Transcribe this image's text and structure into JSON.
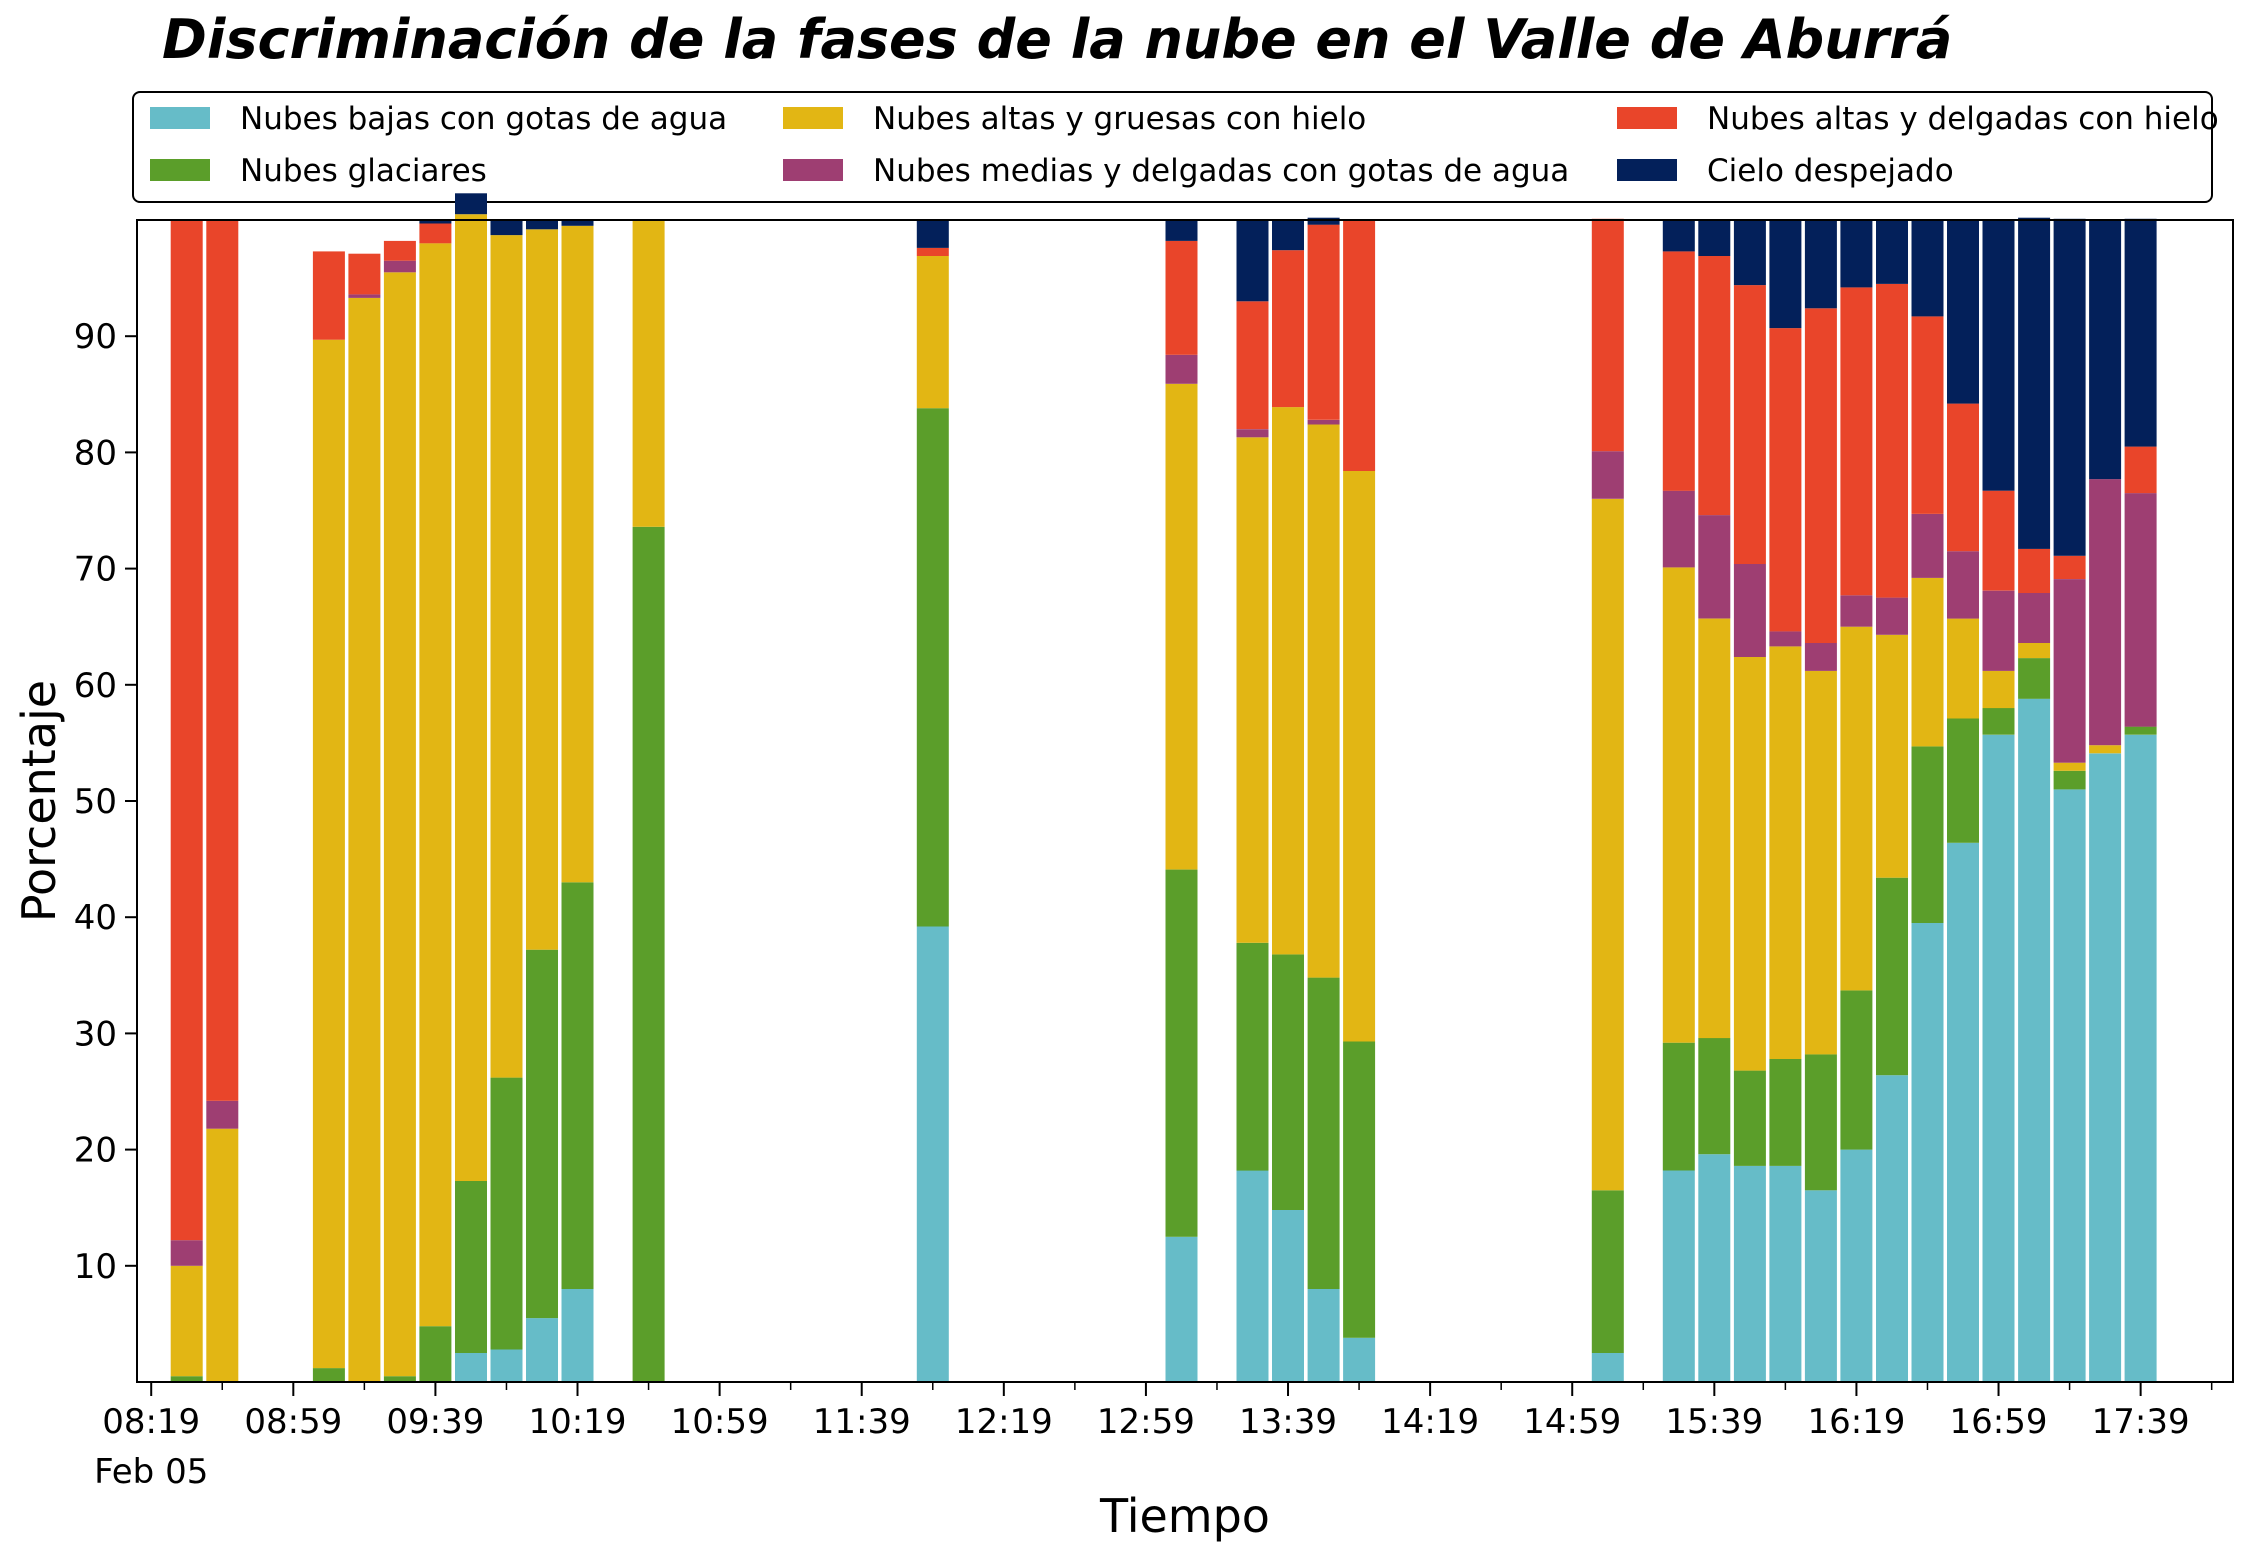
{
  "chart_data": {
    "type": "bar",
    "stacked": true,
    "title": "Discriminación de la fases de la nube en el Valle de Aburrá",
    "xlabel": "Tiempo",
    "ylabel": "Porcentaje",
    "ylim": [
      0,
      100
    ],
    "yticks": [
      10,
      20,
      30,
      40,
      50,
      60,
      70,
      80,
      90
    ],
    "x_tick_labels": [
      "08:19",
      "08:59",
      "09:39",
      "10:19",
      "10:59",
      "11:39",
      "12:19",
      "12:59",
      "13:39",
      "14:19",
      "14:59",
      "15:39",
      "16:19",
      "16:59",
      "17:39"
    ],
    "x_date_label": "Feb 05",
    "x_domain": [
      "08:15",
      "18:05"
    ],
    "legend_position": "top",
    "bar_width_minutes": 9,
    "grid": false,
    "times": [
      "08:29",
      "08:39",
      "09:09",
      "09:19",
      "09:29",
      "09:39",
      "09:49",
      "09:59",
      "10:09",
      "10:19",
      "10:39",
      "11:59",
      "13:09",
      "13:29",
      "13:39",
      "13:49",
      "13:59",
      "15:09",
      "15:29",
      "15:39",
      "15:49",
      "15:59",
      "16:09",
      "16:19",
      "16:29",
      "16:39",
      "16:49",
      "16:59",
      "17:09",
      "17:19",
      "17:29",
      "17:39"
    ],
    "series": [
      {
        "name": "Nubes bajas con gotas de agua",
        "color": "#66BCC8",
        "values": [
          0,
          0,
          0,
          0,
          0,
          0,
          2.5,
          2.8,
          5.5,
          8,
          0,
          39.2,
          12.5,
          18.2,
          14.8,
          8,
          3.8,
          2.5,
          18.2,
          19.6,
          18.6,
          18.6,
          16.5,
          20,
          26.4,
          39.5,
          46.4,
          55.7,
          58.8,
          51,
          54.1,
          55.7
        ]
      },
      {
        "name": "Nubes glaciares",
        "color": "#5B9E2A",
        "values": [
          0.5,
          0,
          1.2,
          0,
          0.5,
          4.8,
          14.8,
          23.4,
          31.7,
          35,
          73.6,
          44.6,
          31.6,
          19.6,
          22,
          26.8,
          25.5,
          14,
          11,
          10,
          8.2,
          9.2,
          11.7,
          13.7,
          17,
          15.2,
          10.7,
          2.3,
          3.5,
          1.6,
          0,
          0.7
        ]
      },
      {
        "name": "Nubes altas y gruesas con hielo",
        "color": "#E2B614",
        "values": [
          9.5,
          21.8,
          88.5,
          93.3,
          95,
          93.2,
          83.2,
          72.5,
          62,
          56.5,
          26.4,
          13.1,
          41.8,
          43.5,
          47.1,
          47.6,
          49.1,
          59.5,
          40.9,
          36.1,
          35.6,
          35.5,
          33,
          31.3,
          20.9,
          14.5,
          8.6,
          3.2,
          1.3,
          0.7,
          0.7,
          0
        ]
      },
      {
        "name": "Nubes medias y delgadas con gotas de agua",
        "color": "#9E3E72",
        "values": [
          2.2,
          2.4,
          0,
          0.3,
          1,
          0,
          0,
          0,
          0,
          0,
          0,
          0,
          2.5,
          0.7,
          0,
          0.4,
          0,
          4.1,
          6.6,
          8.9,
          8,
          1.3,
          2.4,
          2.7,
          3.2,
          5.5,
          5.8,
          6.9,
          4.3,
          15.8,
          22.9,
          20.1
        ]
      },
      {
        "name": "Nubes altas y delgadas con hielo",
        "color": "#E9452A",
        "values": [
          87.8,
          75.8,
          7.6,
          3.5,
          1.7,
          1.7,
          0,
          0,
          0,
          0,
          0,
          0.7,
          9.8,
          11,
          13.5,
          16.8,
          21.6,
          20,
          20.6,
          22.3,
          24,
          26.1,
          28.8,
          26.5,
          27,
          17,
          12.7,
          8.6,
          3.8,
          2,
          0,
          4
        ]
      },
      {
        "name": "Cielo despejado",
        "color": "#03205A",
        "values": [
          0,
          0,
          0,
          0,
          0,
          0.3,
          1.8,
          1.3,
          0.8,
          0.5,
          0,
          2.4,
          1.8,
          7,
          2.6,
          0.6,
          0,
          0,
          2.7,
          3.1,
          5.6,
          9.3,
          7.6,
          5.8,
          5.5,
          8.3,
          15.8,
          23.3,
          28.5,
          29,
          22.3,
          19.6
        ]
      }
    ]
  }
}
